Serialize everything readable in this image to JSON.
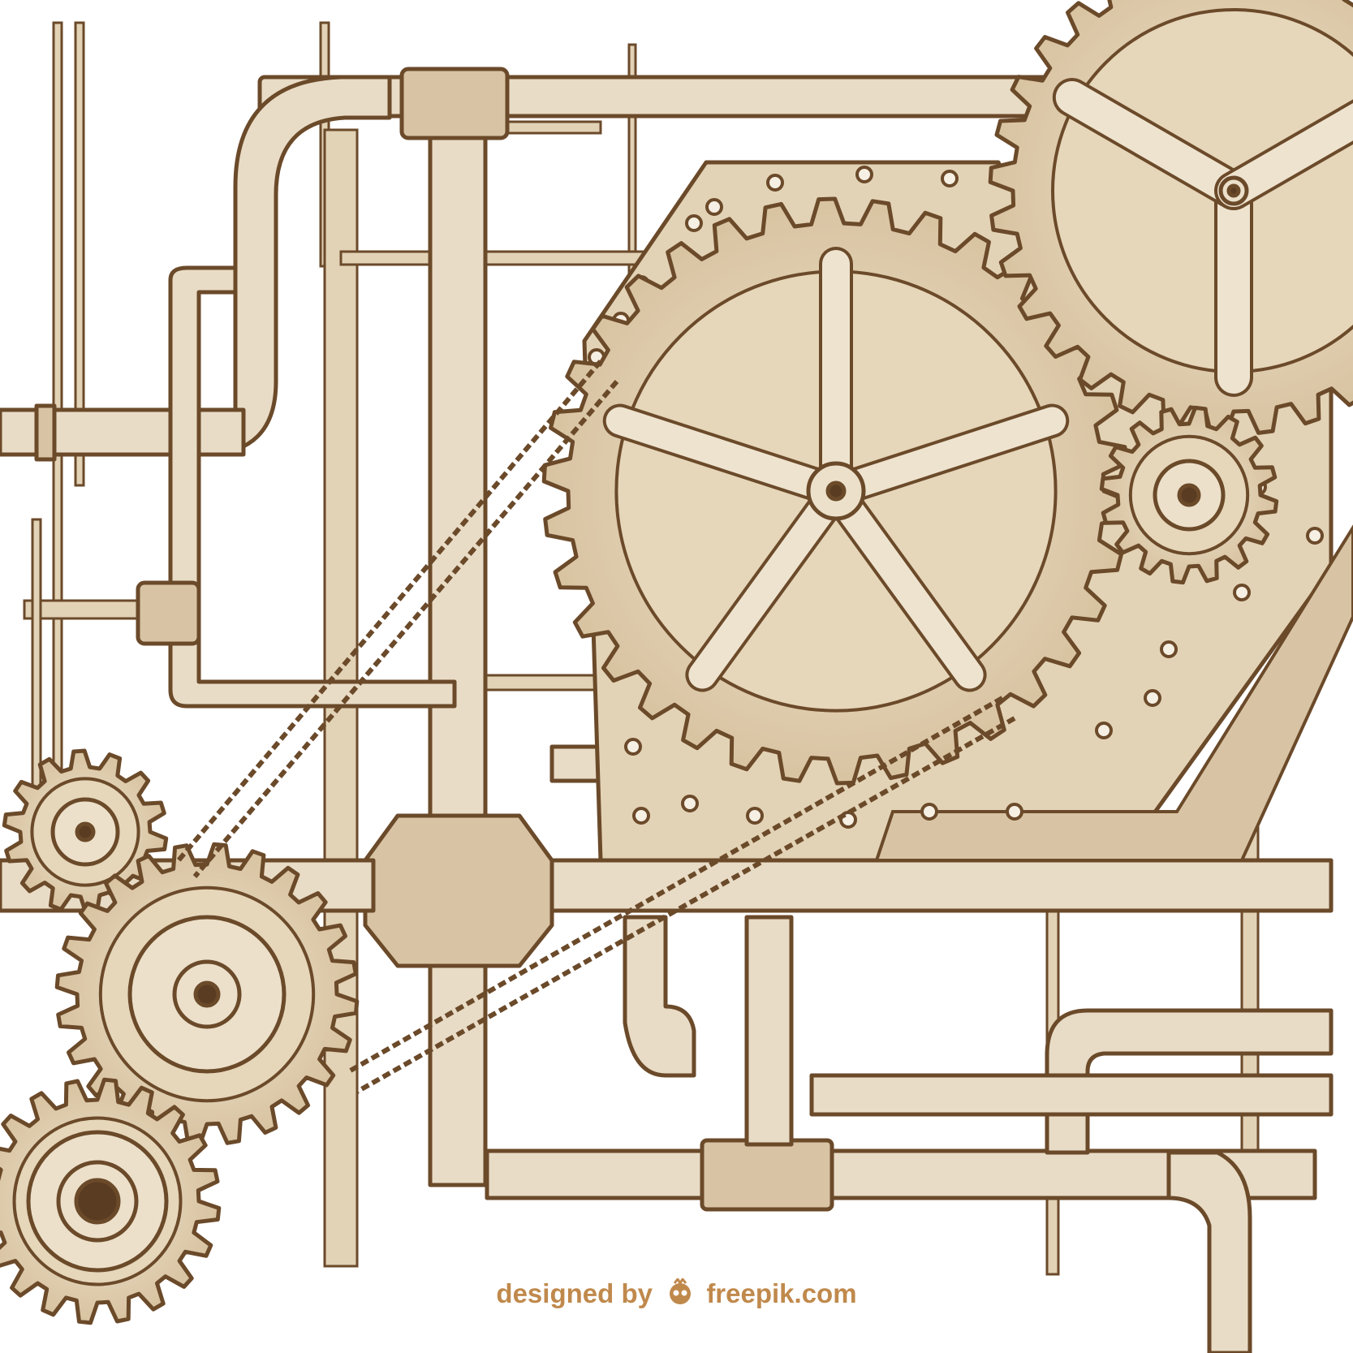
{
  "illustration": {
    "subject": "sepia hand-drawn steampunk machinery: pipes, riveted plates, gears and chain drive",
    "colors": {
      "background": "#ffffff",
      "fill": "#e9dcc6",
      "fill_dark": "#d8c4a4",
      "ink": "#6b4a2a"
    }
  },
  "credit": {
    "prefix": "designed by",
    "brand": "freepik.com",
    "color": "#c0894c",
    "icon": "freepik-logo-icon"
  }
}
